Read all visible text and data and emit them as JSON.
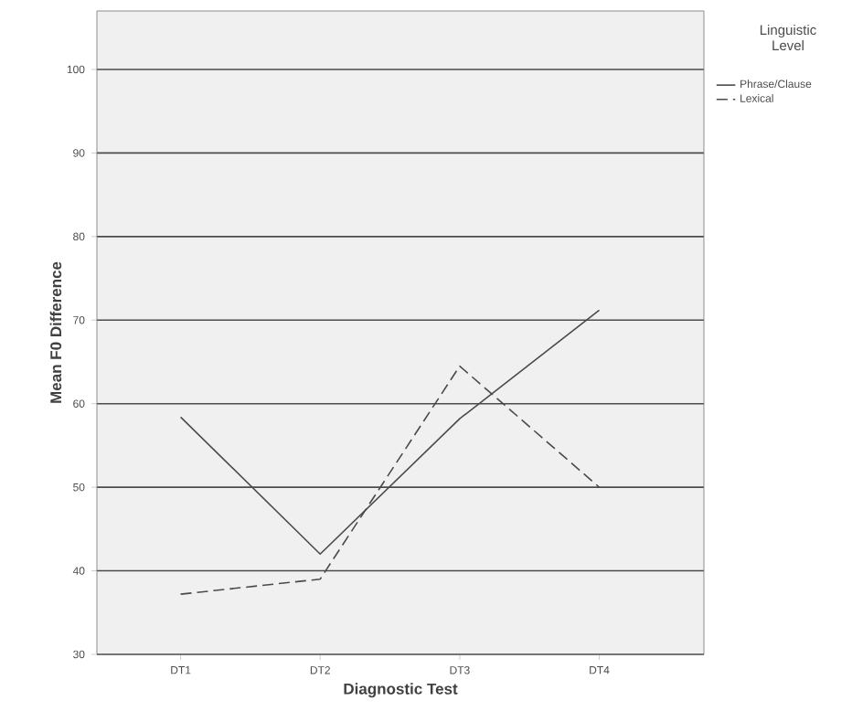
{
  "chart_data": {
    "type": "line",
    "xlabel": "Diagnostic Test",
    "ylabel": "Mean F0 Difference",
    "legend_title": "Linguistic Level",
    "categories": [
      "DT1",
      "DT2",
      "DT3",
      "DT4"
    ],
    "series": [
      {
        "name": "Phrase/Clause",
        "color": "#4a4a4a",
        "line_style": "solid",
        "values": [
          58.4,
          42.0,
          58.2,
          71.2
        ]
      },
      {
        "name": "Lexical",
        "color": "#4a4a4a",
        "line_style": "dashed",
        "values": [
          37.2,
          39.0,
          64.5,
          50.0
        ]
      }
    ],
    "ylim": [
      30,
      107
    ],
    "yticks": [
      30,
      40,
      50,
      60,
      70,
      80,
      90,
      100
    ],
    "grid": "y",
    "legend": "right",
    "marker": "none"
  }
}
